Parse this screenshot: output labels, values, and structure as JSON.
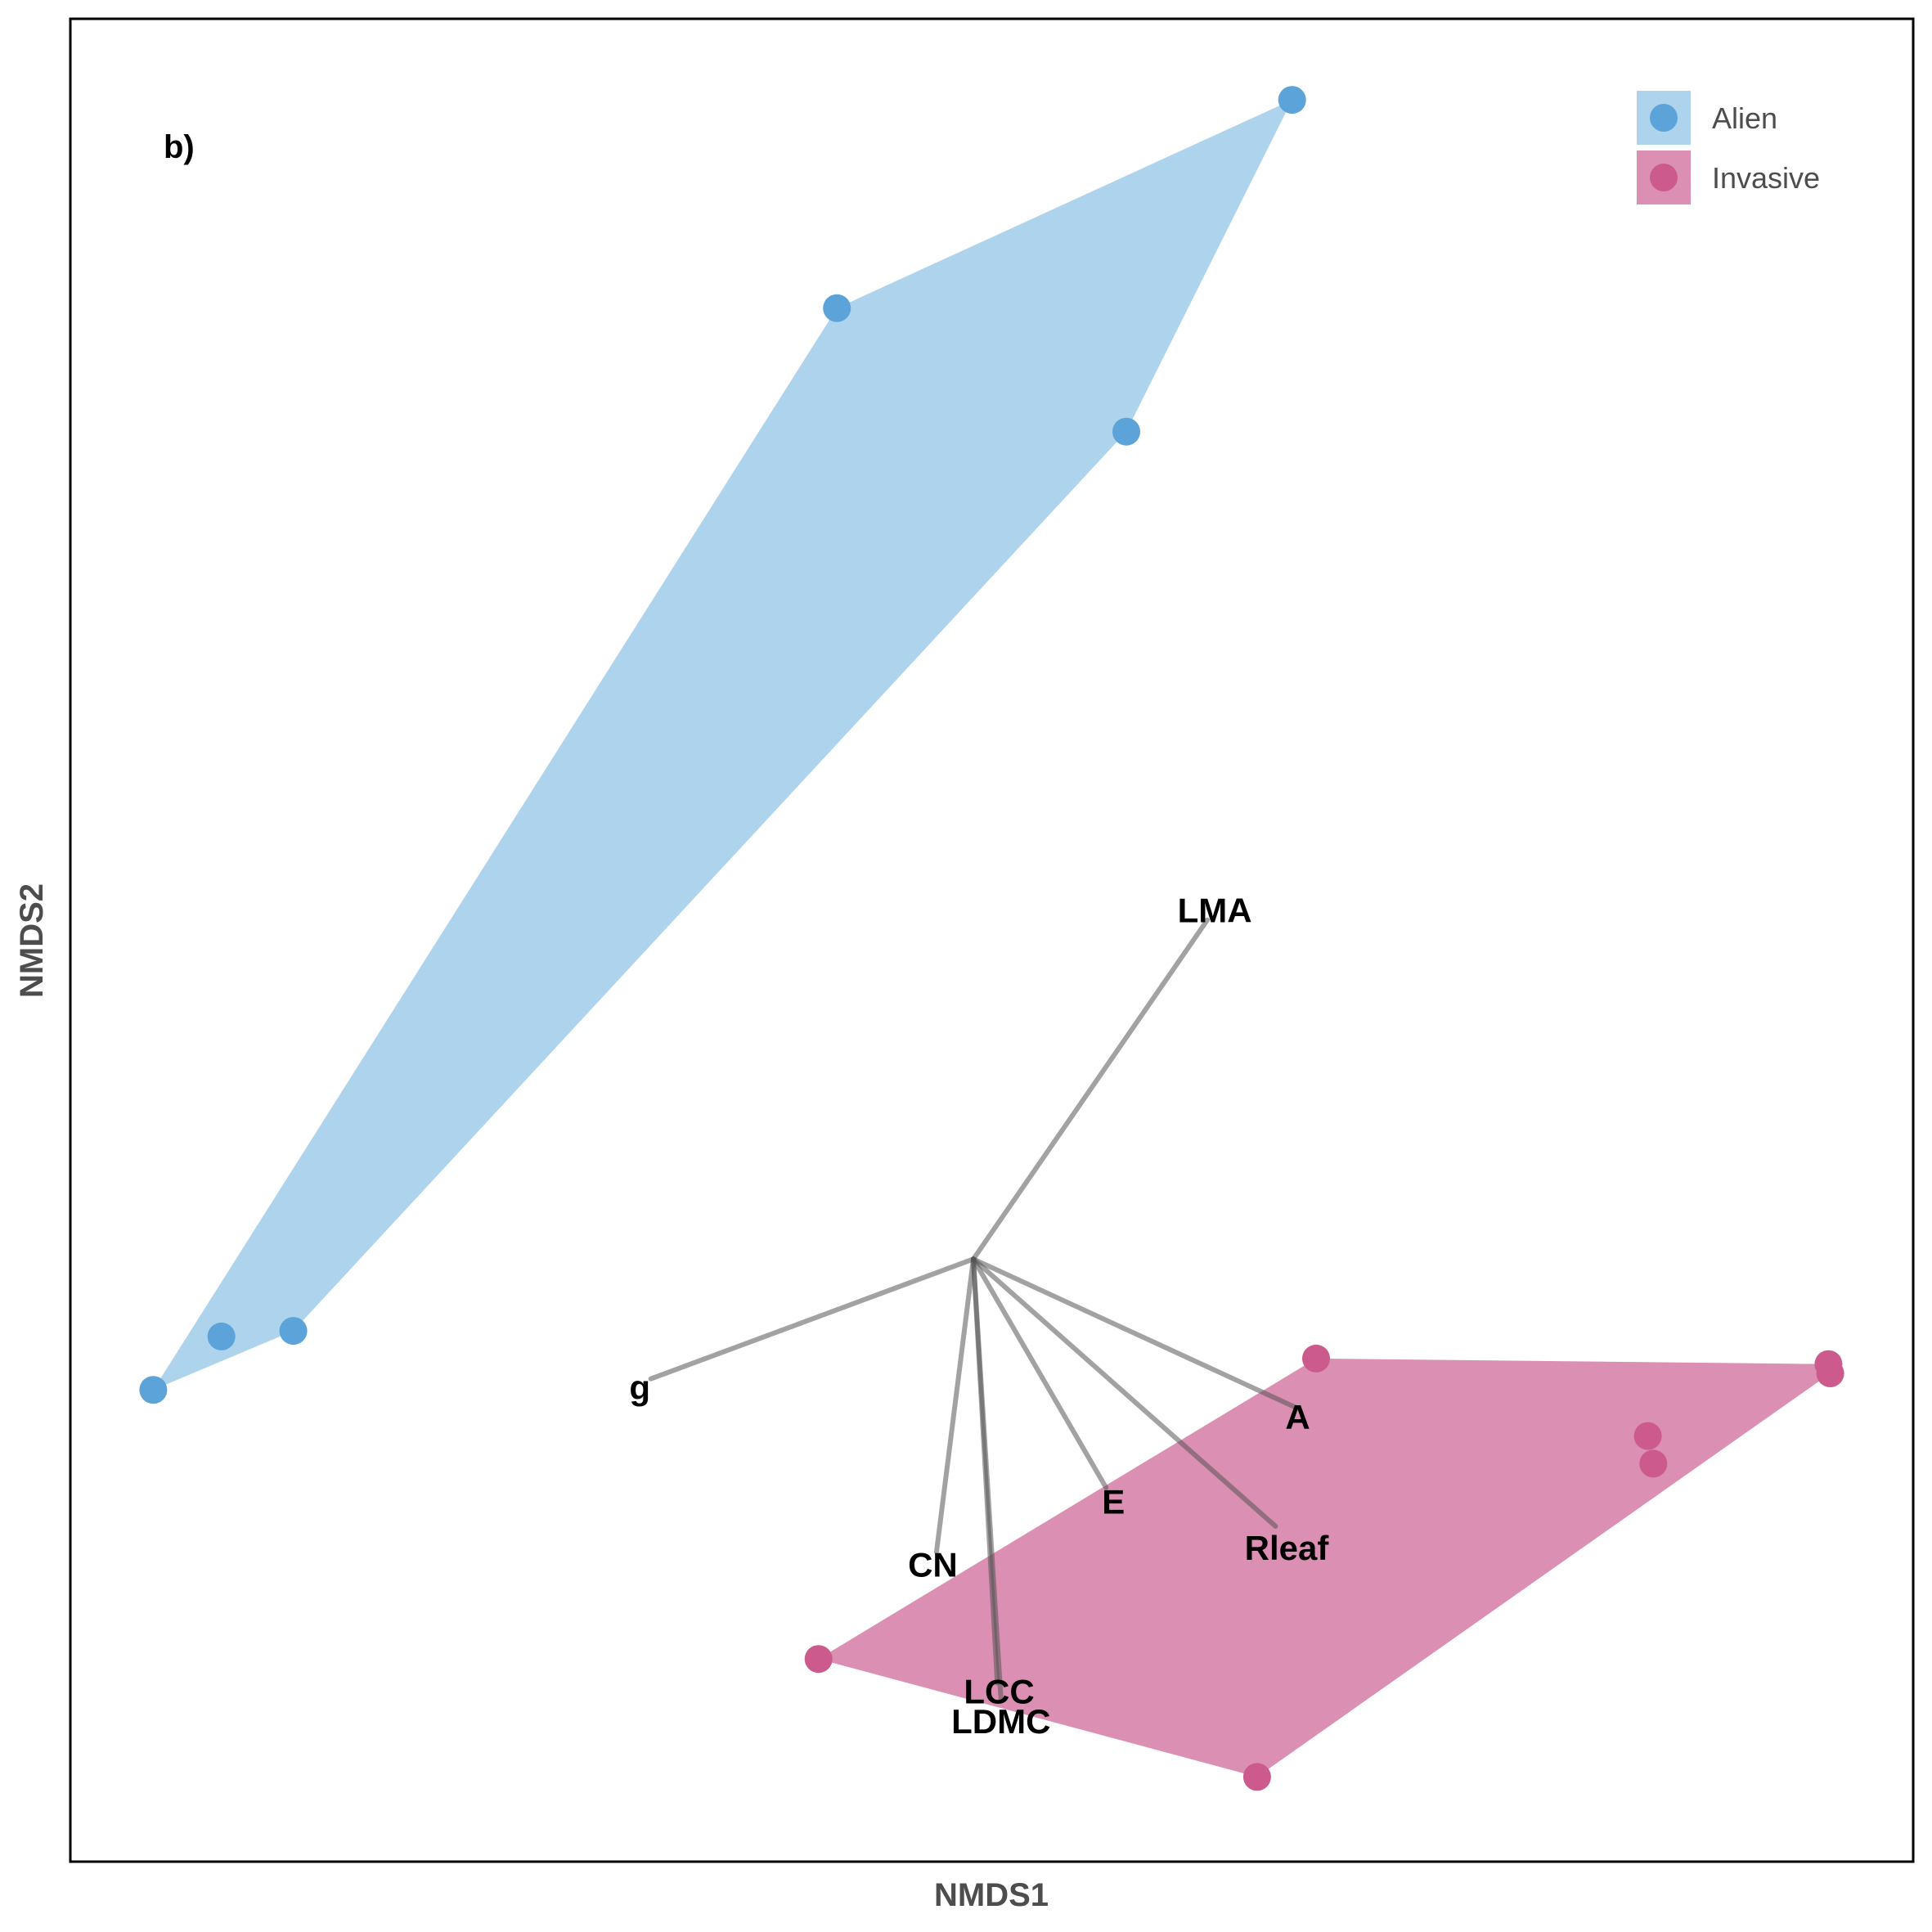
{
  "chart_data": {
    "type": "scatter",
    "subtype": "nmds-ordination-with-convex-hulls-and-trait-vectors",
    "panel_label": "b)",
    "xlabel": "NMDS1",
    "ylabel": "NMDS2",
    "xlim": [
      0,
      100
    ],
    "ylim": [
      0,
      100
    ],
    "axis_ticks_shown": false,
    "grid": false,
    "legend_position": "top-right",
    "vector_origin": [
      49.0,
      32.7
    ],
    "series": [
      {
        "name": "Alien",
        "point_color": "#5ba3d9",
        "hull_color": "#aed3ec",
        "points": [
          [
            4.5,
            25.6
          ],
          [
            8.2,
            28.5
          ],
          [
            12.1,
            28.8
          ],
          [
            41.6,
            84.3
          ],
          [
            57.3,
            77.6
          ],
          [
            66.3,
            95.6
          ]
        ],
        "hull": [
          [
            4.5,
            25.6
          ],
          [
            41.6,
            84.3
          ],
          [
            66.3,
            95.6
          ],
          [
            57.3,
            77.6
          ],
          [
            12.1,
            28.8
          ]
        ]
      },
      {
        "name": "Invasive",
        "point_color": "#cc5a8d",
        "hull_color": "#db8fb2",
        "points": [
          [
            67.6,
            27.3
          ],
          [
            95.4,
            27.0
          ],
          [
            95.5,
            26.5
          ],
          [
            85.6,
            23.1
          ],
          [
            85.9,
            21.6
          ],
          [
            40.6,
            11.0
          ],
          [
            64.4,
            4.6
          ]
        ],
        "hull": [
          [
            40.6,
            11.0
          ],
          [
            67.6,
            27.3
          ],
          [
            95.4,
            27.0
          ],
          [
            95.5,
            26.5
          ],
          [
            64.4,
            4.6
          ]
        ]
      }
    ],
    "vectors": [
      {
        "label": "LMA",
        "end": [
          61.7,
          51.1
        ],
        "label_pos": [
          62.1,
          51.6
        ]
      },
      {
        "label": "g",
        "end": [
          31.5,
          26.2
        ],
        "label_pos": [
          30.9,
          25.7
        ]
      },
      {
        "label": "A",
        "end": [
          66.6,
          24.6
        ],
        "label_pos": [
          66.6,
          24.1
        ]
      },
      {
        "label": "E",
        "end": [
          56.2,
          20.3
        ],
        "label_pos": [
          56.6,
          19.5
        ]
      },
      {
        "label": "Rleaf",
        "end": [
          65.4,
          18.2
        ],
        "label_pos": [
          66.0,
          17.0
        ]
      },
      {
        "label": "CN",
        "end": [
          47.0,
          16.8
        ],
        "label_pos": [
          46.8,
          16.1
        ]
      },
      {
        "label": "LCC",
        "end": [
          50.3,
          9.7
        ],
        "label_pos": [
          50.4,
          9.2
        ]
      },
      {
        "label": "LDMC",
        "end": [
          50.5,
          8.8
        ],
        "label_pos": [
          50.5,
          7.6
        ]
      }
    ]
  }
}
